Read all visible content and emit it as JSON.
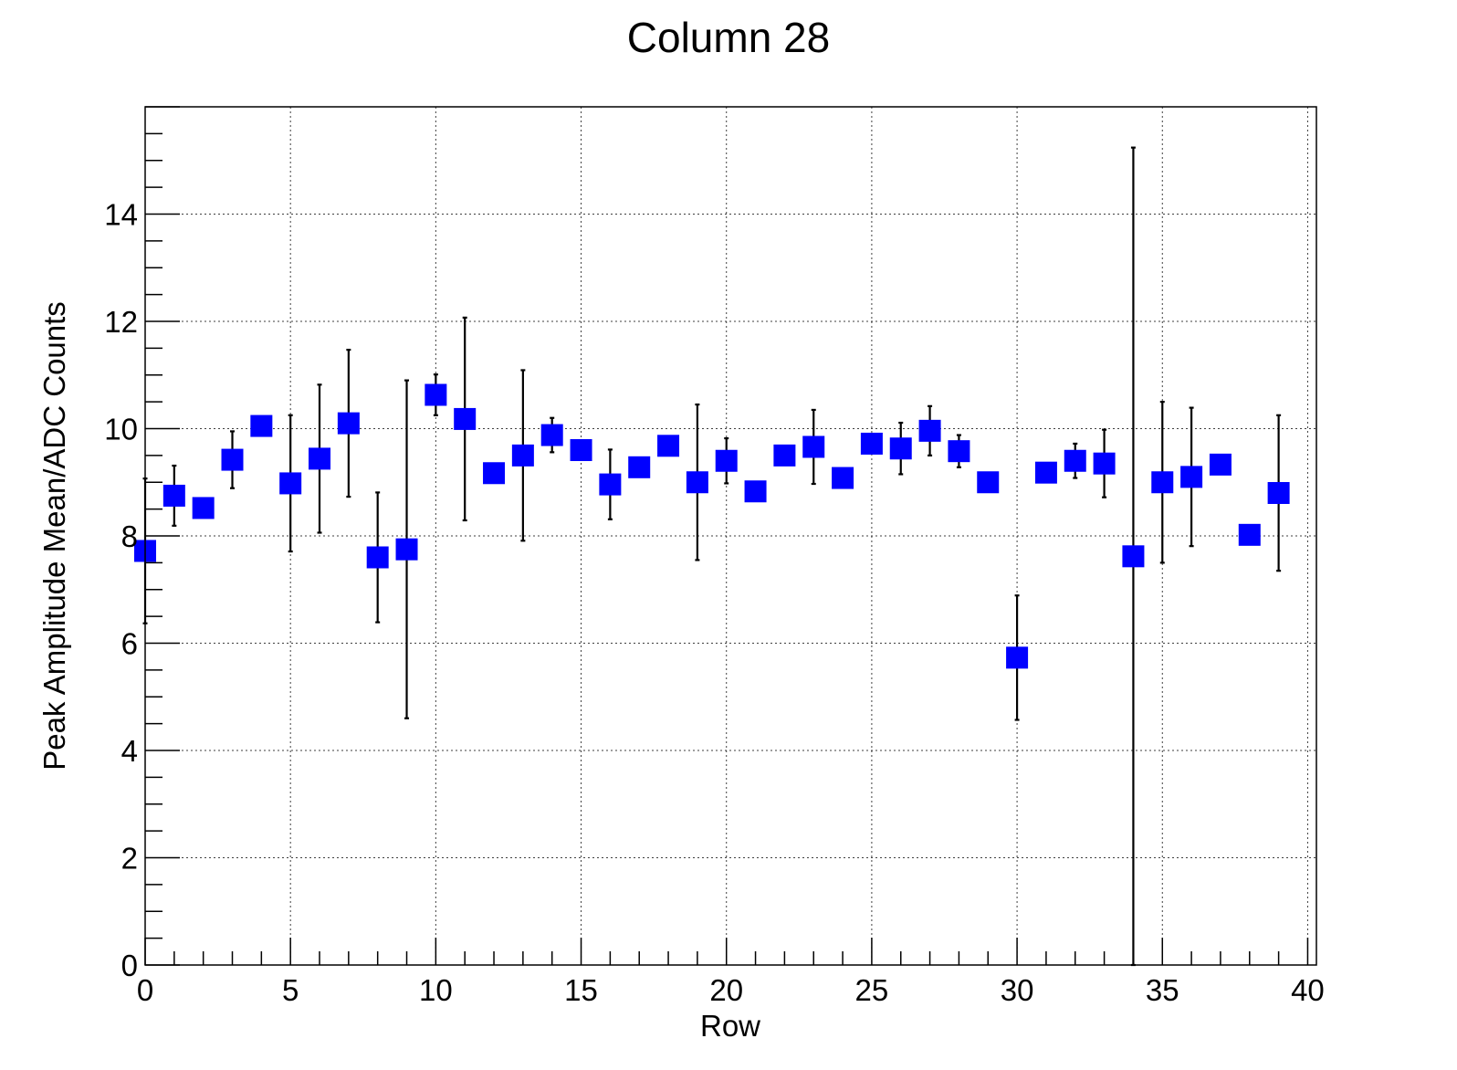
{
  "chart_data": {
    "type": "scatter",
    "title": "Column 28",
    "xlabel": "Row",
    "ylabel": "Peak Amplitude Mean/ADC Counts",
    "xlim": [
      0,
      40.3
    ],
    "ylim": [
      0,
      16
    ],
    "xticks": [
      0,
      5,
      10,
      15,
      20,
      25,
      30,
      35,
      40
    ],
    "yticks": [
      0,
      2,
      4,
      6,
      8,
      10,
      12,
      14
    ],
    "grid": true,
    "marker_color": "#0000ff",
    "marker": "square",
    "series": [
      {
        "points": [
          {
            "x": 0,
            "y": 7.72,
            "err": 1.35
          },
          {
            "x": 1,
            "y": 8.75,
            "err": 0.56
          },
          {
            "x": 2,
            "y": 8.52,
            "err": 0
          },
          {
            "x": 3,
            "y": 9.42,
            "err": 0.53
          },
          {
            "x": 4,
            "y": 10.05,
            "err": 0
          },
          {
            "x": 5,
            "y": 8.98,
            "err": 1.27
          },
          {
            "x": 6,
            "y": 9.44,
            "err": 1.38
          },
          {
            "x": 7,
            "y": 10.1,
            "err": 1.37
          },
          {
            "x": 8,
            "y": 7.6,
            "err": 1.21
          },
          {
            "x": 9,
            "y": 7.75,
            "err": 3.15
          },
          {
            "x": 10,
            "y": 10.63,
            "err": 0.38
          },
          {
            "x": 11,
            "y": 10.18,
            "err": 1.89
          },
          {
            "x": 12,
            "y": 9.17,
            "err": 0
          },
          {
            "x": 13,
            "y": 9.5,
            "err": 1.59
          },
          {
            "x": 14,
            "y": 9.88,
            "err": 0.32
          },
          {
            "x": 15,
            "y": 9.6,
            "err": 0
          },
          {
            "x": 16,
            "y": 8.96,
            "err": 0.65
          },
          {
            "x": 17,
            "y": 9.28,
            "err": 0
          },
          {
            "x": 18,
            "y": 9.68,
            "err": 0
          },
          {
            "x": 19,
            "y": 9.0,
            "err": 1.45
          },
          {
            "x": 20,
            "y": 9.4,
            "err": 0.42
          },
          {
            "x": 21,
            "y": 8.83,
            "err": 0
          },
          {
            "x": 22,
            "y": 9.5,
            "err": 0
          },
          {
            "x": 23,
            "y": 9.66,
            "err": 0.69
          },
          {
            "x": 24,
            "y": 9.08,
            "err": 0
          },
          {
            "x": 25,
            "y": 9.72,
            "err": 0
          },
          {
            "x": 26,
            "y": 9.63,
            "err": 0.48
          },
          {
            "x": 27,
            "y": 9.96,
            "err": 0.46
          },
          {
            "x": 28,
            "y": 9.58,
            "err": 0.3
          },
          {
            "x": 29,
            "y": 9.0,
            "err": 0
          },
          {
            "x": 30,
            "y": 5.73,
            "err": 1.16
          },
          {
            "x": 31,
            "y": 9.18,
            "err": 0
          },
          {
            "x": 32,
            "y": 9.4,
            "err": 0.32
          },
          {
            "x": 33,
            "y": 9.35,
            "err": 0.63
          },
          {
            "x": 34,
            "y": 7.62,
            "err": 7.62
          },
          {
            "x": 35,
            "y": 9.0,
            "err": 1.5
          },
          {
            "x": 36,
            "y": 9.1,
            "err": 1.29
          },
          {
            "x": 37,
            "y": 9.33,
            "err": 0
          },
          {
            "x": 38,
            "y": 8.02,
            "err": 0
          },
          {
            "x": 39,
            "y": 8.8,
            "err": 1.45
          }
        ]
      }
    ]
  }
}
